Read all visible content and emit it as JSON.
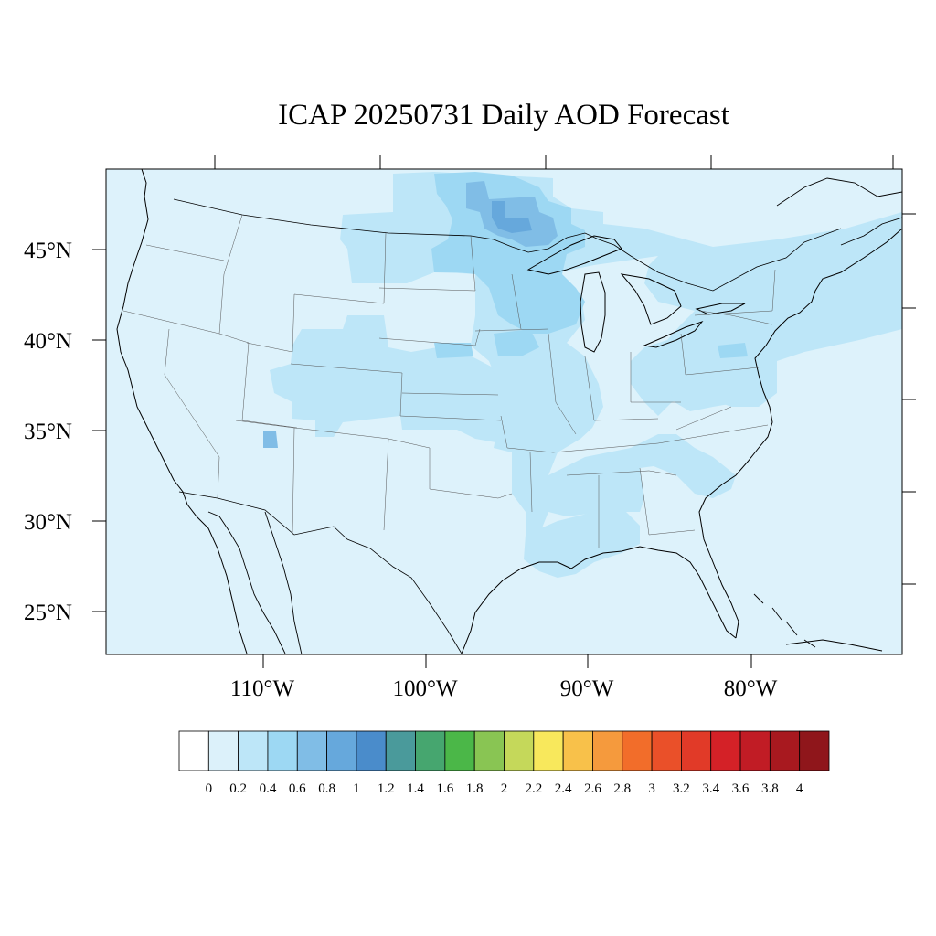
{
  "title": "ICAP 20250731 Daily AOD Forecast",
  "map": {
    "lat_labels": [
      "45°N",
      "40°N",
      "35°N",
      "30°N",
      "25°N"
    ],
    "lon_labels": [
      "110°W",
      "100°W",
      "90°W",
      "80°W"
    ],
    "background_color": "#ddf2fb",
    "extent": {
      "lon_min": -119,
      "lon_max": -70,
      "lat_min": 22.5,
      "lat_max": 49.5
    }
  },
  "aod_regions": [
    {
      "name": "northern-plains",
      "level": "0.2-0.4"
    },
    {
      "name": "central-rockies",
      "level": "0.2-0.4"
    },
    {
      "name": "upper-midwest",
      "level": "0.4-0.6"
    },
    {
      "name": "lake-superior-minnesota",
      "level": "0.6-0.8"
    },
    {
      "name": "minnesota-core",
      "level": "0.8-1"
    },
    {
      "name": "mississippi-valley",
      "level": "0.2-0.4"
    },
    {
      "name": "gulf-coast",
      "level": "0.2-0.4"
    },
    {
      "name": "southeast",
      "level": "0.2-0.4"
    },
    {
      "name": "northeast-plume",
      "level": "0.2-0.4"
    },
    {
      "name": "four-corners",
      "level": "0.6-0.8"
    }
  ],
  "colorbar": {
    "colors": [
      "#ffffff",
      "#dcf1fa",
      "#bde6f8",
      "#9dd8f3",
      "#80bde6",
      "#66a8dc",
      "#4a8ccb",
      "#4a9a9b",
      "#46a66f",
      "#4bb748",
      "#89c553",
      "#c5d85a",
      "#f8e85c",
      "#f8c14a",
      "#f59a3d",
      "#f26d2a",
      "#ea5029",
      "#e13a28",
      "#d42127",
      "#c11c25",
      "#a8191f",
      "#8f161b"
    ],
    "labels": [
      "0",
      "0.2",
      "0.4",
      "0.6",
      "0.8",
      "1",
      "1.2",
      "1.4",
      "1.6",
      "1.8",
      "2",
      "2.2",
      "2.4",
      "2.6",
      "2.8",
      "3",
      "3.2",
      "3.4",
      "3.6",
      "3.8",
      "4"
    ]
  }
}
